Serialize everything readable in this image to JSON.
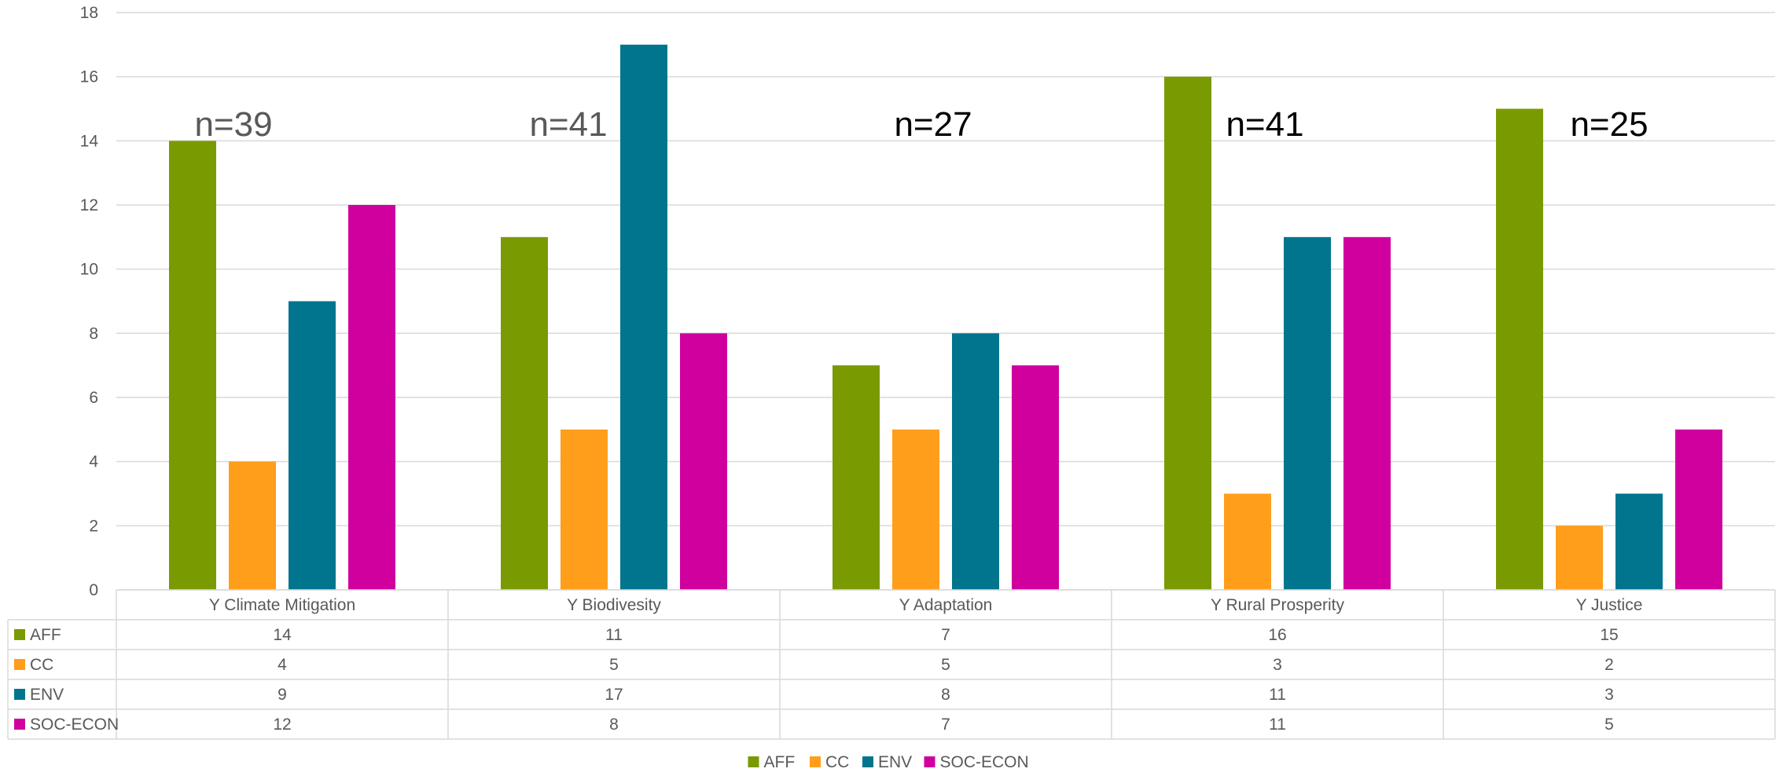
{
  "chart_data": {
    "type": "bar",
    "categories": [
      "Y Climate Mitigation",
      "Y Biodivesity",
      "Y Adaptation",
      "Y Rural Prosperity",
      "Y Justice"
    ],
    "series": [
      {
        "name": "AFF",
        "color": "#7A9A01",
        "values": [
          14,
          11,
          7,
          16,
          15
        ]
      },
      {
        "name": "CC",
        "color": "#FF9E1B",
        "values": [
          4,
          5,
          5,
          3,
          2
        ]
      },
      {
        "name": "ENV",
        "color": "#00758D",
        "values": [
          9,
          17,
          8,
          11,
          3
        ]
      },
      {
        "name": "SOC-ECON",
        "color": "#D0009F",
        "values": [
          12,
          8,
          7,
          11,
          5
        ]
      }
    ],
    "ylim": [
      0,
      18
    ],
    "yticks": [
      0,
      2,
      4,
      6,
      8,
      10,
      12,
      14,
      16,
      18
    ],
    "grid": true,
    "data_table": true,
    "legend_position": "bottom",
    "annotations": [
      {
        "text": "n=39",
        "category": "Y Climate Mitigation",
        "color": "#595959"
      },
      {
        "text": "n=41",
        "category": "Y Biodivesity",
        "color": "#595959"
      },
      {
        "text": "n=27",
        "category": "Y Adaptation",
        "color": "#000000"
      },
      {
        "text": "n=41",
        "category": "Y Rural Prosperity",
        "color": "#000000"
      },
      {
        "text": "n=25",
        "category": "Y Justice",
        "color": "#000000"
      }
    ]
  }
}
